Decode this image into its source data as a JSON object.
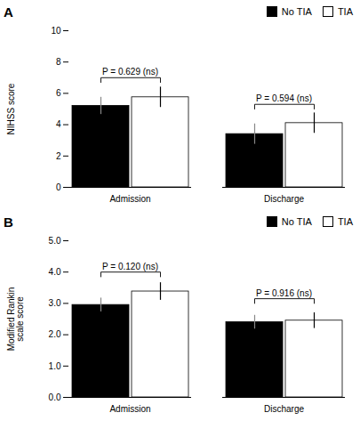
{
  "chart_data": [
    {
      "type": "bar",
      "title": "A",
      "ylabel": "NIHSS score",
      "categories": [
        "Admission",
        "Discharge"
      ],
      "series": [
        {
          "name": "No TIA",
          "color": "#000000",
          "values": [
            5.2,
            3.4
          ],
          "errors": [
            0.55,
            0.65
          ]
        },
        {
          "name": "TIA",
          "color": "#ffffff",
          "values": [
            5.75,
            4.1
          ],
          "errors": [
            0.65,
            0.65
          ]
        }
      ],
      "ylim": [
        0,
        10
      ],
      "yticks": [
        0,
        2,
        4,
        6,
        8,
        10
      ],
      "grid": false,
      "legend": "upper right",
      "annotations": [
        {
          "text": "P = 0.629 (ns)",
          "category": "Admission",
          "y": 7.0
        },
        {
          "text": "P = 0.594 (ns)",
          "category": "Discharge",
          "y": 5.3
        }
      ]
    },
    {
      "type": "bar",
      "title": "B",
      "ylabel": "Modified Rankin\nscale score",
      "categories": [
        "Admission",
        "Discharge"
      ],
      "series": [
        {
          "name": "No TIA",
          "color": "#000000",
          "values": [
            2.95,
            2.4
          ],
          "errors": [
            0.22,
            0.22
          ]
        },
        {
          "name": "TIA",
          "color": "#ffffff",
          "values": [
            3.38,
            2.45
          ],
          "errors": [
            0.28,
            0.25
          ]
        }
      ],
      "ylim": [
        0,
        5
      ],
      "yticks": [
        0,
        1,
        2,
        3,
        4,
        5
      ],
      "grid": false,
      "legend": "upper right",
      "annotations": [
        {
          "text": "P = 0.120 (ns)",
          "category": "Admission",
          "y": 4.0
        },
        {
          "text": "P = 0.916 (ns)",
          "category": "Discharge",
          "y": 3.15
        }
      ]
    }
  ]
}
